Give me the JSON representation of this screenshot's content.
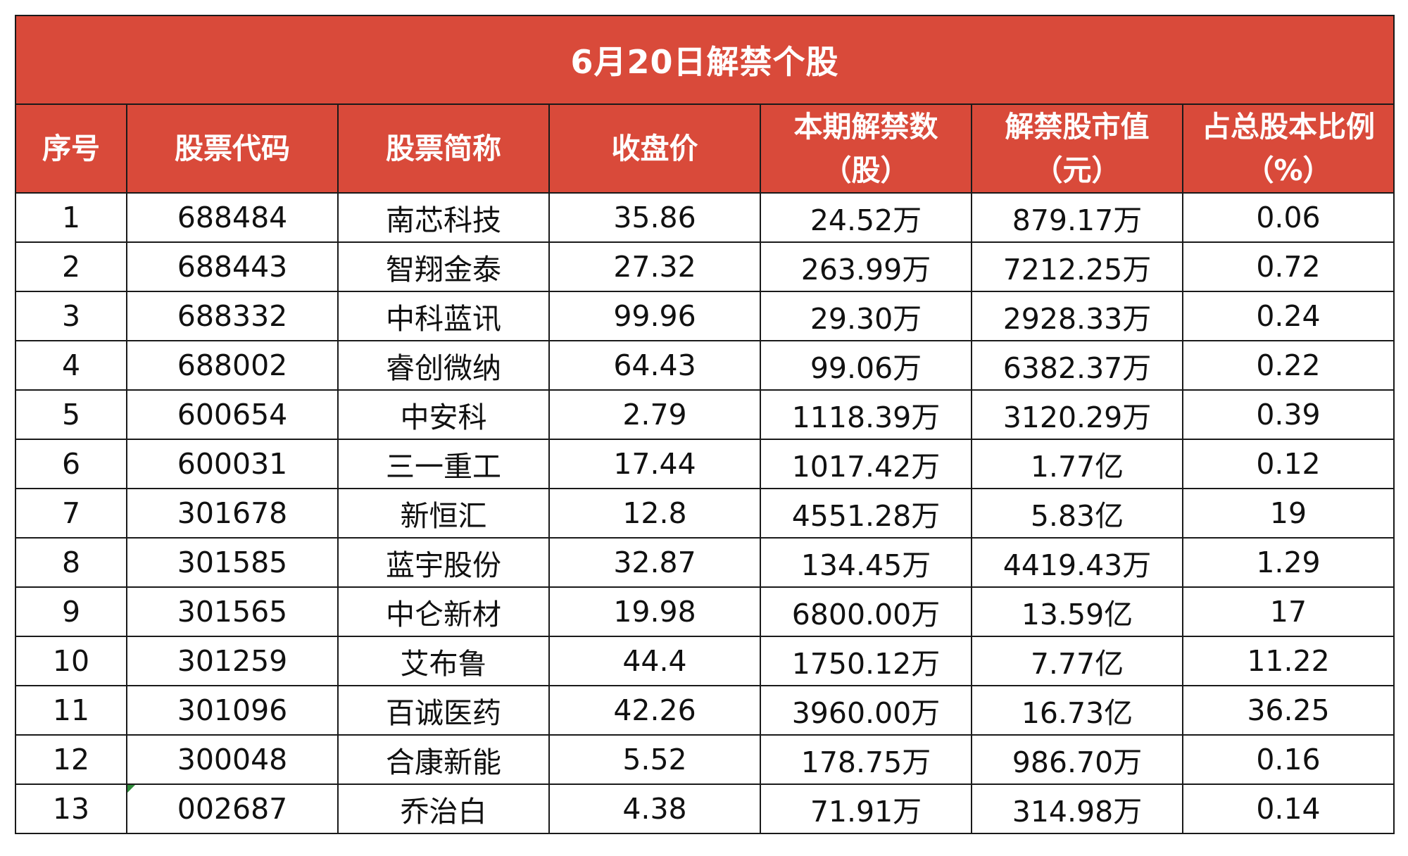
{
  "title": "6月20日解禁个股",
  "columns": [
    {
      "lines": [
        "序号"
      ]
    },
    {
      "lines": [
        "股票代码"
      ]
    },
    {
      "lines": [
        "股票简称"
      ]
    },
    {
      "lines": [
        "收盘价"
      ]
    },
    {
      "lines": [
        "本期解禁数",
        "（股）"
      ]
    },
    {
      "lines": [
        "解禁股市值",
        "（元）"
      ]
    },
    {
      "lines": [
        "占总股本比例",
        "（%）"
      ]
    }
  ],
  "rows": [
    [
      "1",
      "688484",
      "南芯科技",
      "35.86",
      "24.52万",
      "879.17万",
      "0.06"
    ],
    [
      "2",
      "688443",
      "智翔金泰",
      "27.32",
      "263.99万",
      "7212.25万",
      "0.72"
    ],
    [
      "3",
      "688332",
      "中科蓝讯",
      "99.96",
      "29.30万",
      "2928.33万",
      "0.24"
    ],
    [
      "4",
      "688002",
      "睿创微纳",
      "64.43",
      "99.06万",
      "6382.37万",
      "0.22"
    ],
    [
      "5",
      "600654",
      "中安科",
      "2.79",
      "1118.39万",
      "3120.29万",
      "0.39"
    ],
    [
      "6",
      "600031",
      "三一重工",
      "17.44",
      "1017.42万",
      "1.77亿",
      "0.12"
    ],
    [
      "7",
      "301678",
      "新恒汇",
      "12.8",
      "4551.28万",
      "5.83亿",
      "19"
    ],
    [
      "8",
      "301585",
      "蓝宇股份",
      "32.87",
      "134.45万",
      "4419.43万",
      "1.29"
    ],
    [
      "9",
      "301565",
      "中仑新材",
      "19.98",
      "6800.00万",
      "13.59亿",
      "17"
    ],
    [
      "10",
      "301259",
      "艾布鲁",
      "44.4",
      "1750.12万",
      "7.77亿",
      "11.22"
    ],
    [
      "11",
      "301096",
      "百诚医药",
      "42.26",
      "3960.00万",
      "16.73亿",
      "36.25"
    ],
    [
      "12",
      "300048",
      "合康新能",
      "5.52",
      "178.75万",
      "986.70万",
      "0.16"
    ],
    [
      "13",
      "002687",
      "乔治白",
      "4.38",
      "71.91万",
      "314.98万",
      "0.14"
    ]
  ],
  "colors": {
    "header_bg": "#d94a3a",
    "header_text": "#ffffff",
    "grid": "#1a1a1a",
    "text_marker": "#2e8b3a"
  },
  "text_number_marker_row": 13
}
